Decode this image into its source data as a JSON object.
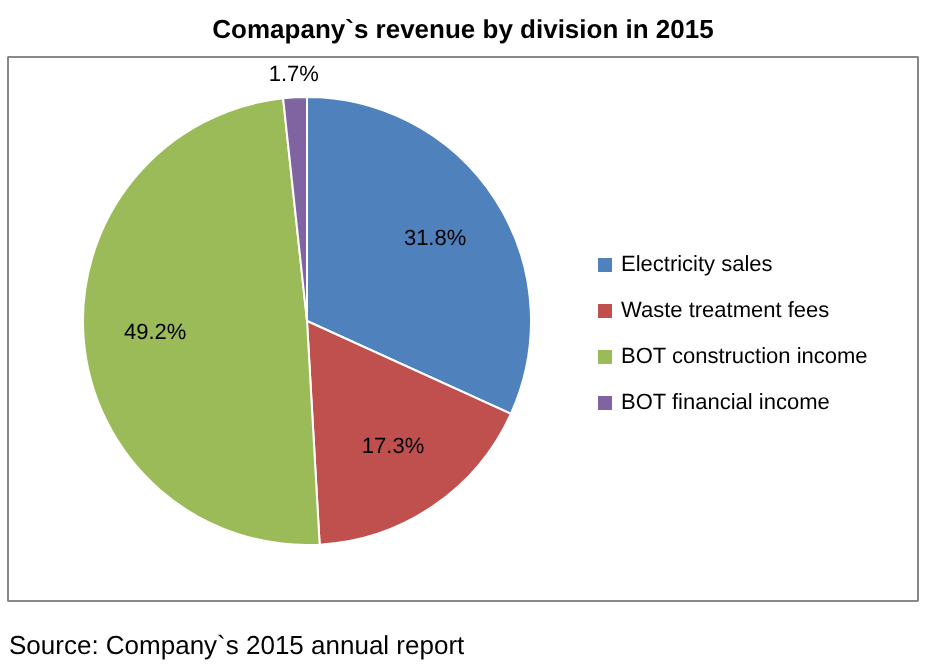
{
  "chart_data": {
    "type": "pie",
    "title": "Comapany`s revenue by division in 2015",
    "categories": [
      "Electricity sales",
      "Waste treatment fees",
      "BOT construction income",
      "BOT financial income"
    ],
    "values": [
      31.8,
      17.3,
      49.2,
      1.7
    ],
    "colors": [
      "#4f81bd",
      "#c0504d",
      "#9bbb59",
      "#8064a2"
    ],
    "value_labels": [
      "31.8%",
      "17.3%",
      "49.2%",
      "1.7%"
    ],
    "legend": "right",
    "annotations": [
      "Source: Company`s 2015 annual report"
    ]
  }
}
